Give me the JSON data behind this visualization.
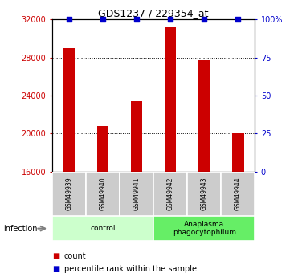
{
  "title": "GDS1237 / 229354_at",
  "samples": [
    "GSM49939",
    "GSM49940",
    "GSM49941",
    "GSM49942",
    "GSM49943",
    "GSM49944"
  ],
  "counts": [
    29000,
    20800,
    23400,
    31200,
    27700,
    20000
  ],
  "percentiles": [
    100,
    100,
    100,
    100,
    100,
    100
  ],
  "ylim_left": [
    16000,
    32000
  ],
  "ylim_right": [
    0,
    100
  ],
  "yticks_left": [
    16000,
    20000,
    24000,
    28000,
    32000
  ],
  "yticks_right": [
    0,
    25,
    50,
    75,
    100
  ],
  "ytick_labels_left": [
    "16000",
    "20000",
    "24000",
    "28000",
    "32000"
  ],
  "ytick_labels_right": [
    "0",
    "25",
    "50",
    "75",
    "100%"
  ],
  "groups": [
    {
      "label": "control",
      "start": 0,
      "end": 3,
      "color": "#ccffcc"
    },
    {
      "label": "Anaplasma\nphagocytophilum",
      "start": 3,
      "end": 6,
      "color": "#66ee66"
    }
  ],
  "infection_label": "infection",
  "bar_color": "#cc0000",
  "percentile_color": "#0000cc",
  "bar_width": 0.35,
  "legend_count_label": "count",
  "legend_percentile_label": "percentile rank within the sample",
  "background_color": "#ffffff",
  "sample_bg_color": "#cccccc"
}
